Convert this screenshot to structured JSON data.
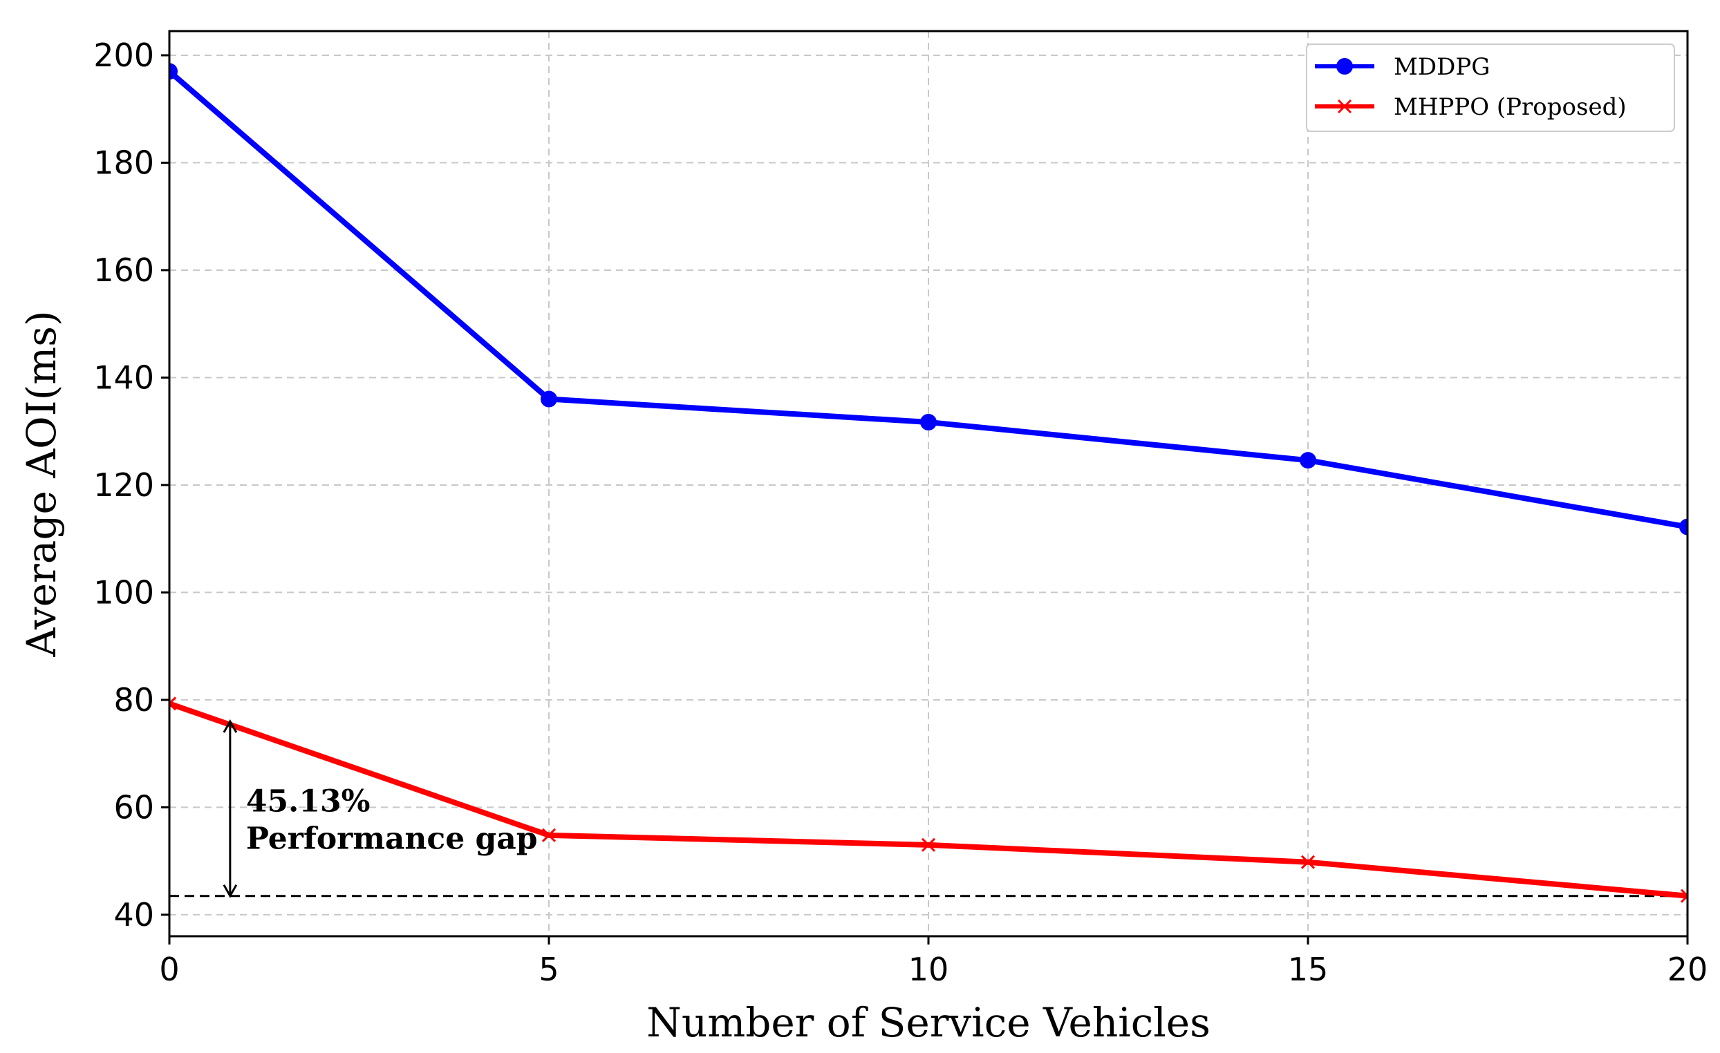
{
  "chart_data": {
    "type": "line",
    "title": "",
    "xlabel": "Number of Service Vehicles",
    "ylabel": "Average AOI(ms)",
    "x": [
      0,
      5,
      10,
      15,
      20
    ],
    "xlim": [
      0,
      20
    ],
    "ylim": [
      36,
      204.5
    ],
    "xticks": [
      0,
      5,
      10,
      15,
      20
    ],
    "yticks": [
      40,
      60,
      80,
      100,
      120,
      140,
      160,
      180,
      200
    ],
    "grid": true,
    "legend_position": "top-right",
    "series": [
      {
        "name": "MDDPG",
        "color": "#0000ff",
        "marker": "circle",
        "values": [
          197,
          136,
          131.7,
          124.6,
          112.2
        ]
      },
      {
        "name": "MHPPO (Proposed)",
        "color": "#ff0000",
        "marker": "x",
        "values": [
          79.3,
          54.8,
          53,
          49.8,
          43.5
        ]
      }
    ],
    "reference_line": {
      "y": 43.5,
      "style": "dashed",
      "color": "#000000"
    },
    "annotation": {
      "x": 0.8,
      "y_from": 76,
      "y_to": 43.5,
      "line1": "45.13%",
      "line2": "Performance gap"
    }
  }
}
